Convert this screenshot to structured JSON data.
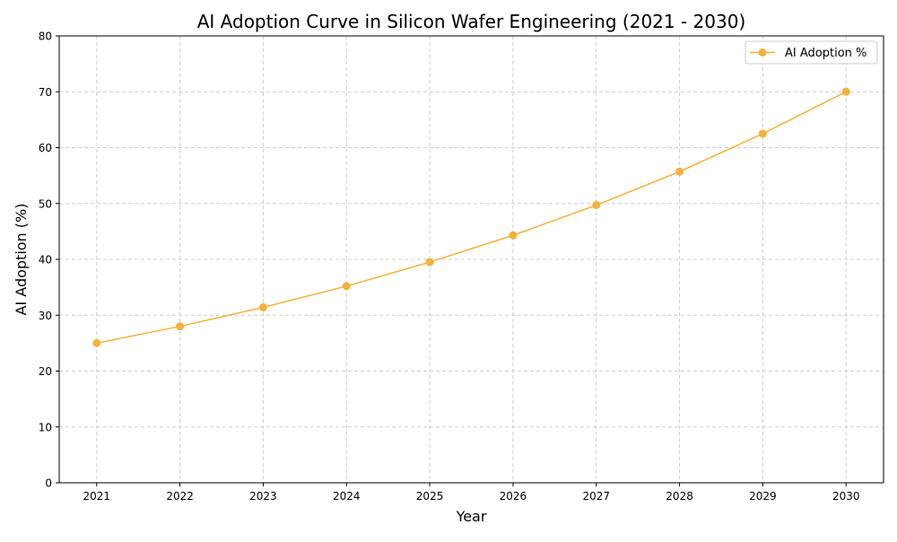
{
  "chart_data": {
    "type": "line",
    "title": "AI Adoption Curve in Silicon Wafer Engineering (2021 - 2030)",
    "xlabel": "Year",
    "ylabel": "AI Adoption (%)",
    "x": [
      2021,
      2022,
      2023,
      2024,
      2025,
      2026,
      2027,
      2028,
      2029,
      2030
    ],
    "xticks": [
      "2021",
      "2022",
      "2023",
      "2024",
      "2025",
      "2026",
      "2027",
      "2028",
      "2029",
      "2030"
    ],
    "yticks": [
      "0",
      "10",
      "20",
      "30",
      "40",
      "50",
      "60",
      "70",
      "80"
    ],
    "ylim": [
      0,
      80
    ],
    "xlim": [
      2020.55,
      2030.45
    ],
    "grid": true,
    "legend_position": "top-right",
    "series": [
      {
        "name": "AI Adoption %",
        "color": "#F4B13E",
        "marker": "circle",
        "values": [
          25.0,
          28.0,
          31.4,
          35.2,
          39.5,
          44.3,
          49.7,
          55.7,
          62.5,
          70.0
        ]
      }
    ]
  }
}
